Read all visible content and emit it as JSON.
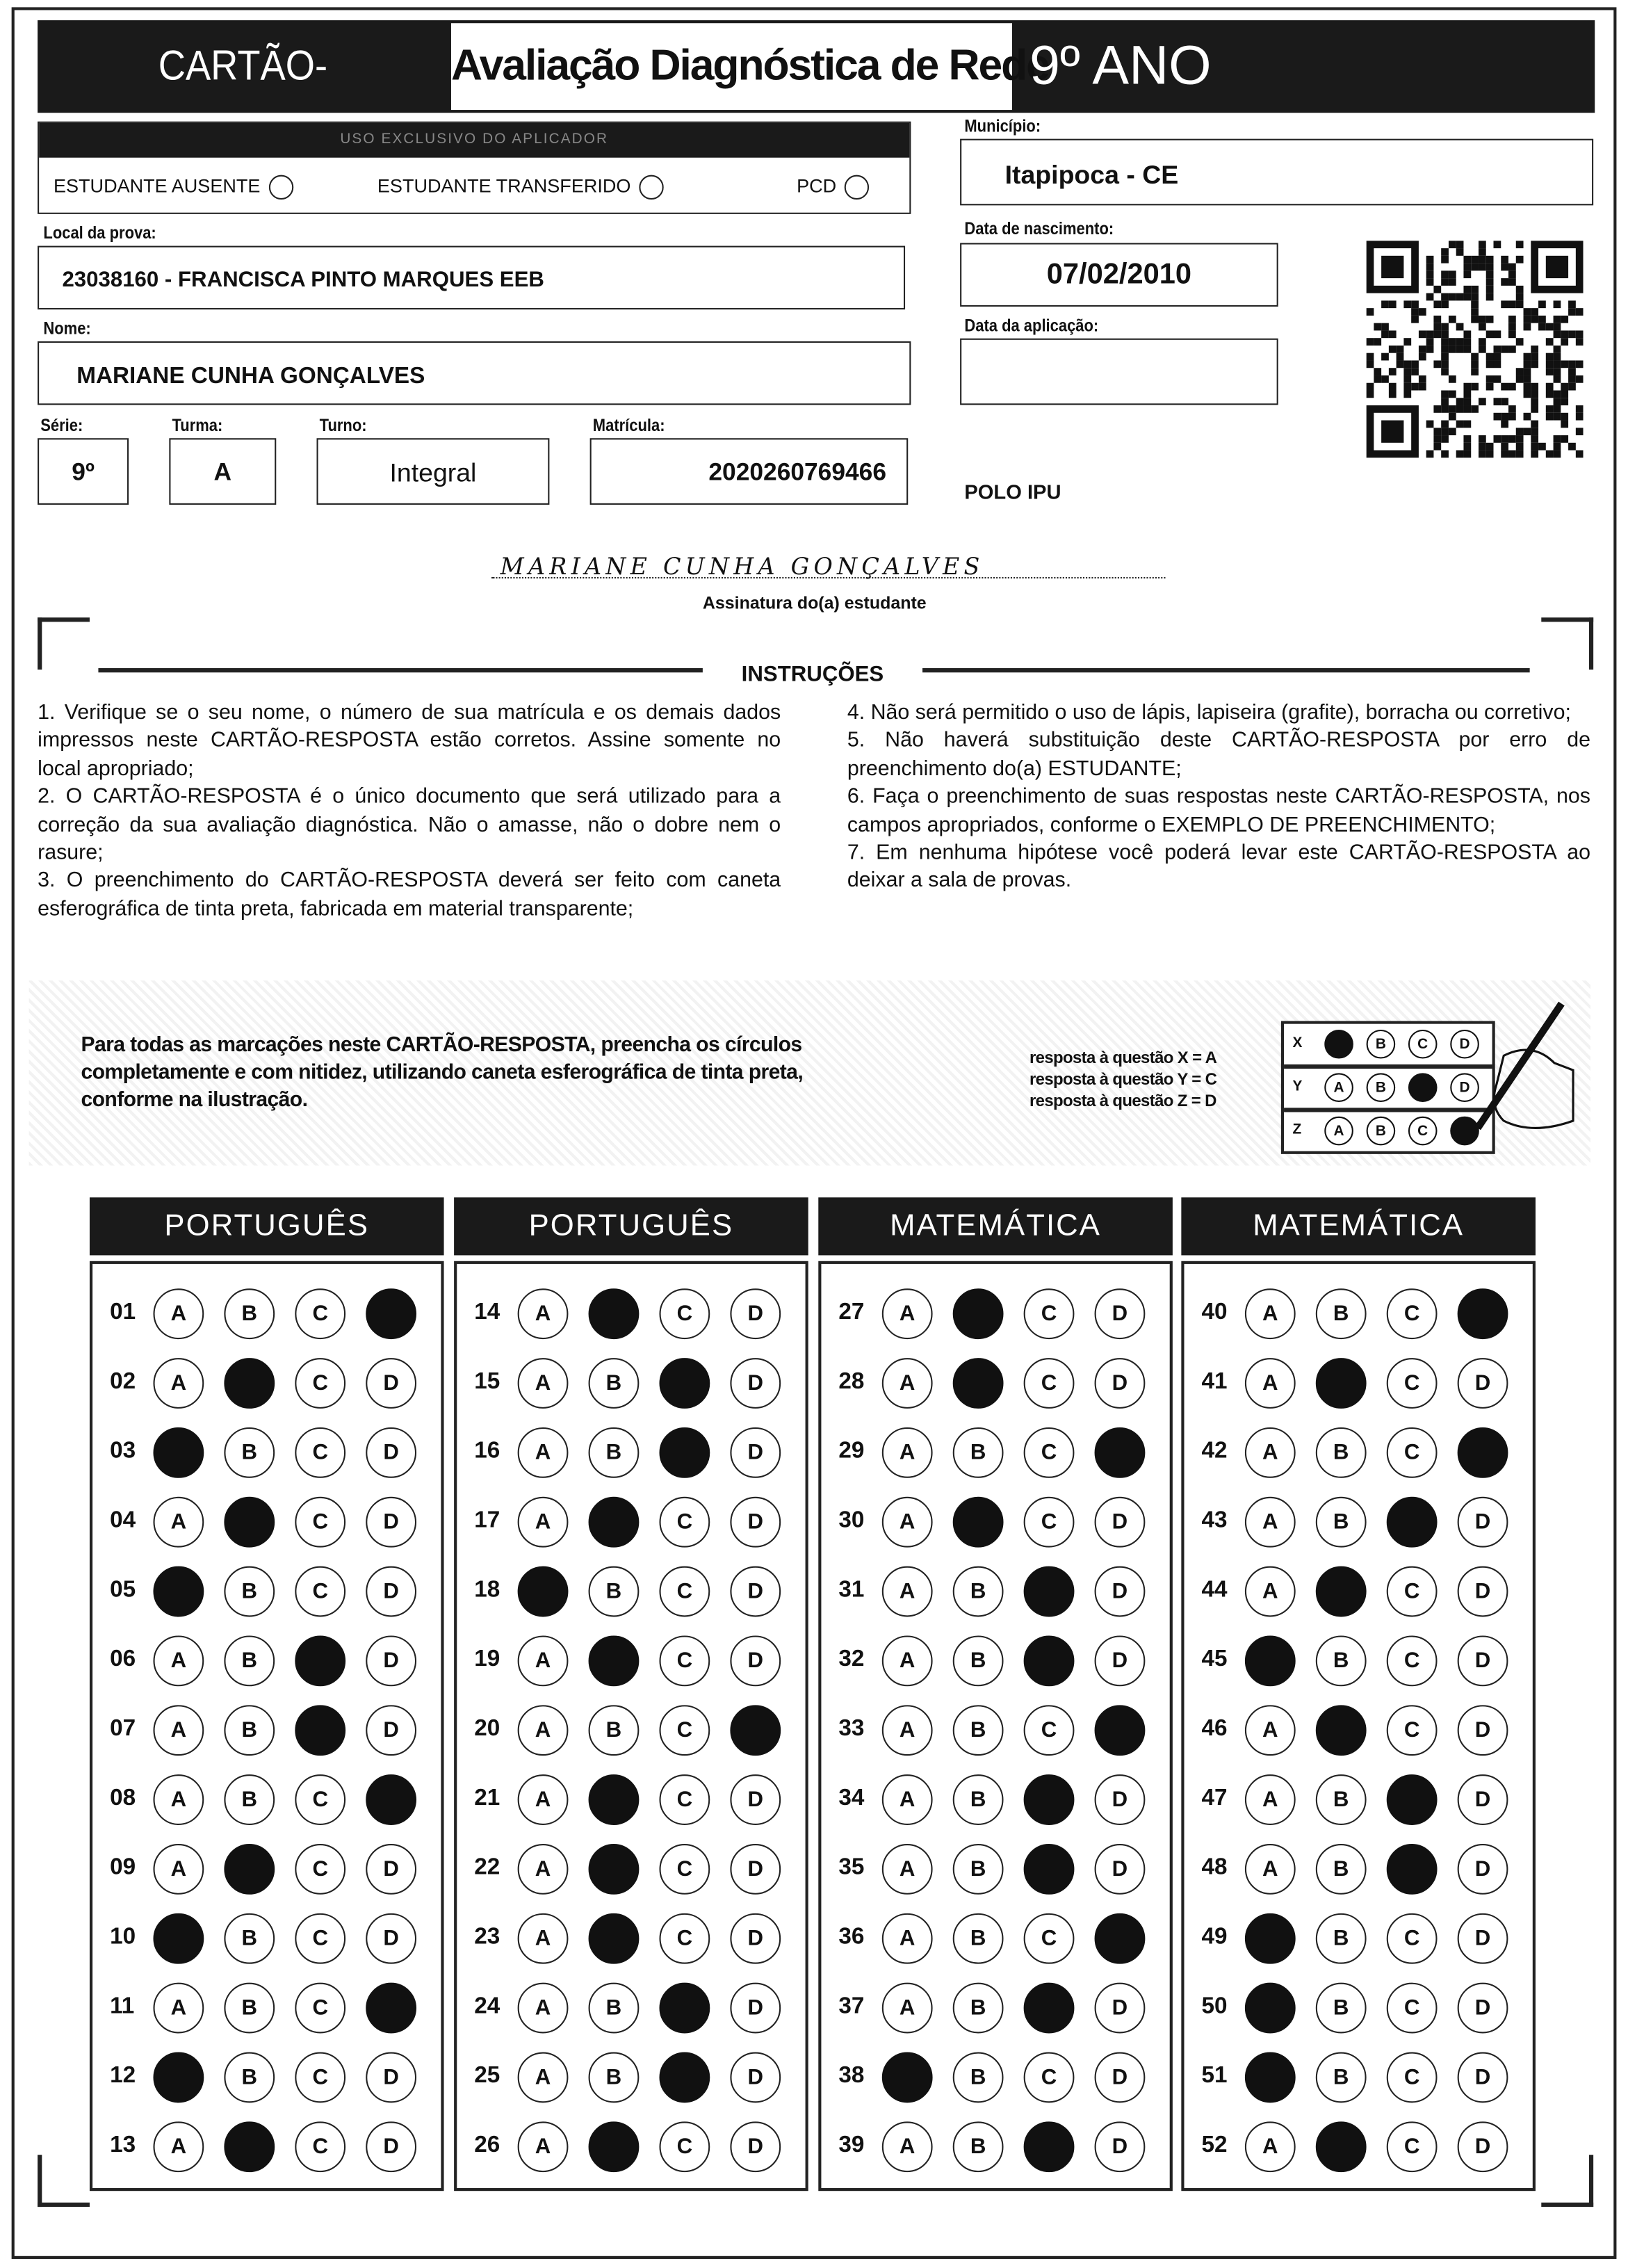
{
  "header": {
    "card_title": "CARTÃO-RESPOSTA",
    "exam_title": "Avaliação Diagnóstica de Rede",
    "grade_title": "9º ANO"
  },
  "applicator": {
    "title": "USO EXCLUSIVO DO APLICADOR",
    "absent": "ESTUDANTE AUSENTE",
    "transferred": "ESTUDANTE TRANSFERIDO",
    "pcd": "PCD"
  },
  "fields": {
    "municipio": {
      "label": "Município:",
      "value": "Itapipoca - CE"
    },
    "local": {
      "label": "Local da prova:",
      "value": "23038160 - FRANCISCA PINTO MARQUES EEB"
    },
    "nascimento": {
      "label": "Data de nascimento:",
      "value": "07/02/2010"
    },
    "nome": {
      "label": "Nome:",
      "value": "MARIANE CUNHA GONÇALVES"
    },
    "aplicacao": {
      "label": "Data da aplicação:",
      "value": ""
    },
    "serie": {
      "label": "Série:",
      "value": "9º"
    },
    "turma": {
      "label": "Turma:",
      "value": "A"
    },
    "turno": {
      "label": "Turno:",
      "value": "Integral"
    },
    "matricula": {
      "label": "Matrícula:",
      "value": "2020260769466"
    },
    "polo": "POLO IPU"
  },
  "signature": {
    "handwritten": "MARIANE CUNHA GONÇALVES",
    "label": "Assinatura do(a) estudante"
  },
  "instructions": {
    "title": "INSTRUÇÕES",
    "left": [
      "1. Verifique se o seu nome, o número de sua matrícula e os demais dados impressos neste CARTÃO-RESPOSTA estão corretos. Assine somente no local apropriado;",
      "2. O CARTÃO-RESPOSTA é o único documento que será utilizado para a correção da sua avaliação diagnóstica. Não o amasse, não o dobre nem o rasure;",
      "3. O preenchimento do CARTÃO-RESPOSTA deverá ser feito com caneta esferográfica de tinta preta, fabricada em material transparente;"
    ],
    "right": [
      "4. Não será permitido o uso de lápis, lapiseira (grafite), borracha ou corretivo;",
      "5. Não haverá substituição deste CARTÃO-RESPOSTA por erro de preenchimento do(a) ESTUDANTE;",
      "6. Faça o preenchimento de suas respostas neste CARTÃO-RESPOSTA, nos campos apropriados, conforme o EXEMPLO DE PREENCHIMENTO;",
      "7. Em nenhuma hipótese você poderá levar este CARTÃO-RESPOSTA ao deixar a sala de provas."
    ]
  },
  "example": {
    "text": "Para todas as marcações neste CARTÃO-RESPOSTA, preencha os círculos completamente e com nitidez, utilizando caneta esferográfica de tinta preta, conforme na ilustração.",
    "legend": [
      "resposta à questão X = A",
      "resposta à questão Y = C",
      "resposta à questão Z = D"
    ],
    "rows": [
      {
        "q": "X",
        "answer": "A"
      },
      {
        "q": "Y",
        "answer": "C"
      },
      {
        "q": "Z",
        "answer": "D"
      }
    ]
  },
  "options": [
    "A",
    "B",
    "C",
    "D"
  ],
  "sections": [
    {
      "title": "PORTUGUÊS",
      "start": 1,
      "answers": [
        "D",
        "B",
        "A",
        "B",
        "A",
        "C",
        "C",
        "D",
        "B",
        "A",
        "D",
        "A",
        "B"
      ]
    },
    {
      "title": "PORTUGUÊS",
      "start": 14,
      "answers": [
        "B",
        "C",
        "C",
        "B",
        "A",
        "B",
        "D",
        "B",
        "B",
        "B",
        "C",
        "C",
        "B"
      ]
    },
    {
      "title": "MATEMÁTICA",
      "start": 27,
      "answers": [
        "B",
        "B",
        "D",
        "B",
        "C",
        "C",
        "D",
        "C",
        "C",
        "D",
        "C",
        "A",
        "C"
      ]
    },
    {
      "title": "MATEMÁTICA",
      "start": 40,
      "answers": [
        "D",
        "B",
        "D",
        "C",
        "B",
        "A",
        "B",
        "C",
        "C",
        "A",
        "A",
        "A",
        "B"
      ]
    }
  ]
}
